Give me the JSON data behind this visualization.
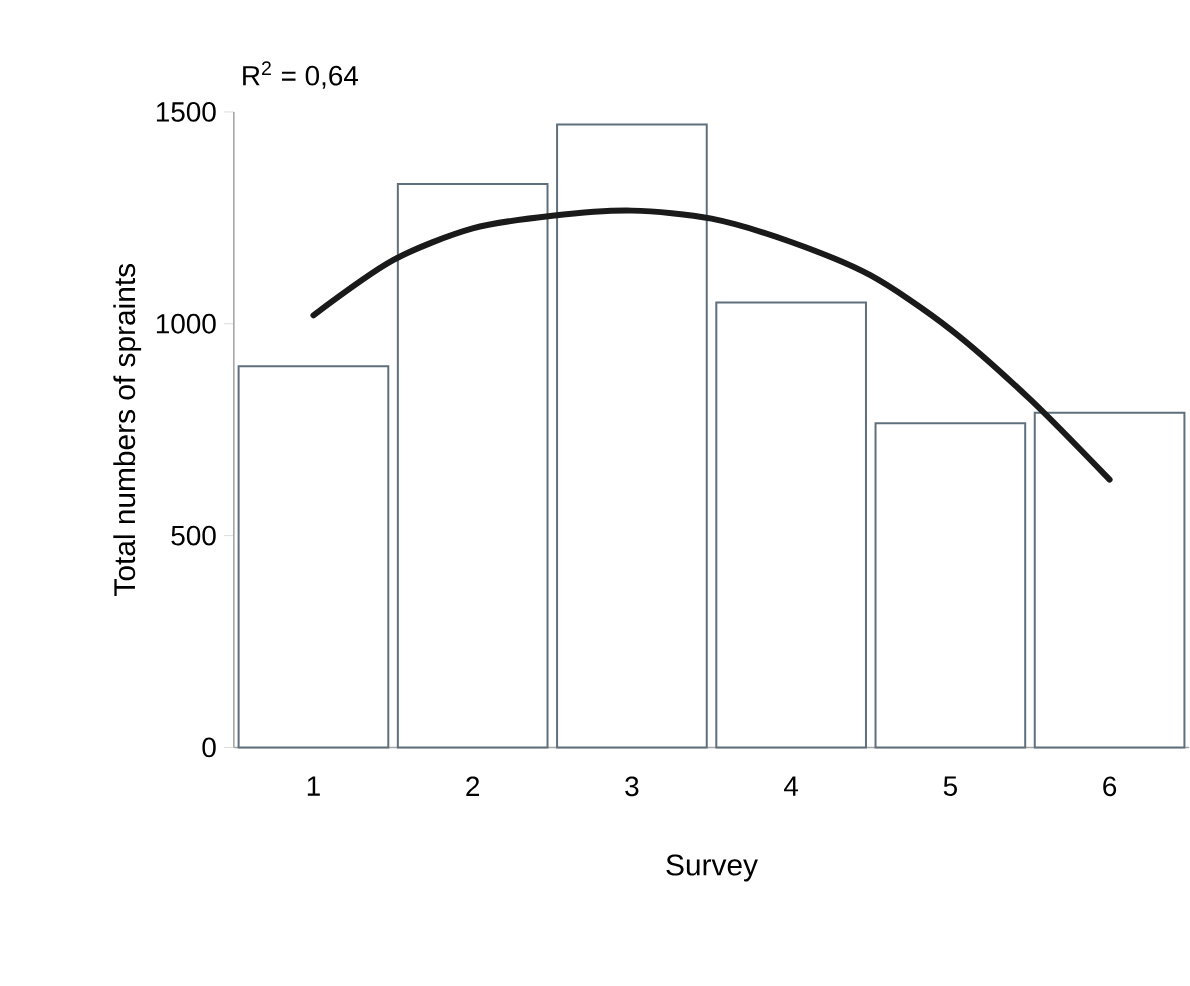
{
  "chart_data": {
    "type": "bar",
    "xlabel": "Survey",
    "ylabel": "Total numbers of spraints",
    "annotations": [
      "R$^{2}$ = 0,64"
    ],
    "x": [
      1,
      2,
      3,
      4,
      5,
      6
    ],
    "xlim": [
      0.5,
      6.5
    ],
    "xticks": [
      1,
      2,
      3,
      4,
      5,
      6
    ],
    "ylim": [
      0,
      1500
    ],
    "yticks": [
      0,
      500,
      1000,
      1500
    ],
    "grid": false,
    "legend": false,
    "series": [
      {
        "color": "#5f6f7c",
        "values": [
          900,
          1330,
          1470,
          1050,
          765,
          790
        ]
      },
      {
        "type": "line",
        "color": "#1a1a1a",
        "x": [
          1,
          1.5,
          2,
          2.5,
          3,
          3.5,
          4,
          4.5,
          5,
          5.5,
          6
        ],
        "values": [
          1020,
          1150,
          1225,
          1255,
          1267,
          1248,
          1193,
          1114,
          987,
          822,
          632
        ]
      }
    ]
  }
}
